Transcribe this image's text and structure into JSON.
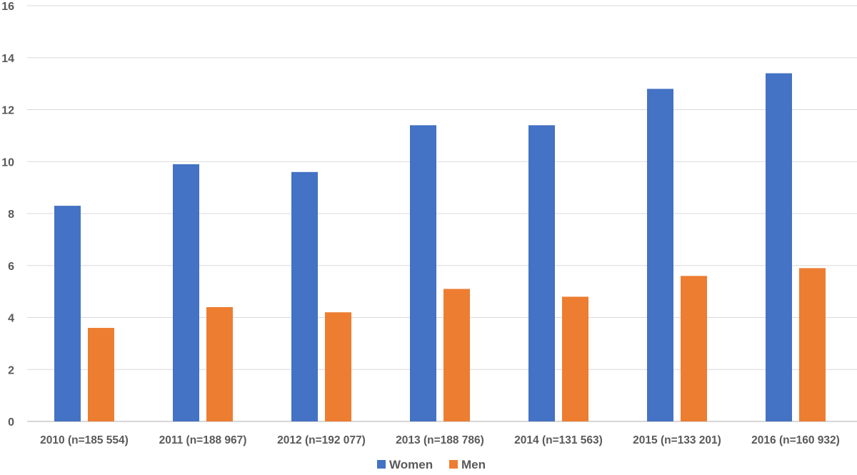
{
  "chart_data": {
    "type": "bar",
    "title": "",
    "xlabel": "",
    "ylabel": "",
    "ylim": [
      0,
      16
    ],
    "yticks": [
      0,
      2,
      4,
      6,
      8,
      10,
      12,
      14,
      16
    ],
    "grid": true,
    "legend_position": "bottom",
    "categories": [
      "2010 (n=185 554)",
      "2011 (n=188 967)",
      "2012 (n=192 077)",
      "2013 (n=188 786)",
      "2014 (n=131 563)",
      "2015 (n=133 201)",
      "2016 (n=160 932)"
    ],
    "series": [
      {
        "name": "Women",
        "color": "#4472C4",
        "values": [
          8.3,
          9.9,
          9.6,
          11.4,
          11.4,
          12.8,
          13.4
        ]
      },
      {
        "name": "Men",
        "color": "#ED7D31",
        "values": [
          3.6,
          4.4,
          4.2,
          5.1,
          4.8,
          5.6,
          5.9
        ]
      }
    ]
  }
}
